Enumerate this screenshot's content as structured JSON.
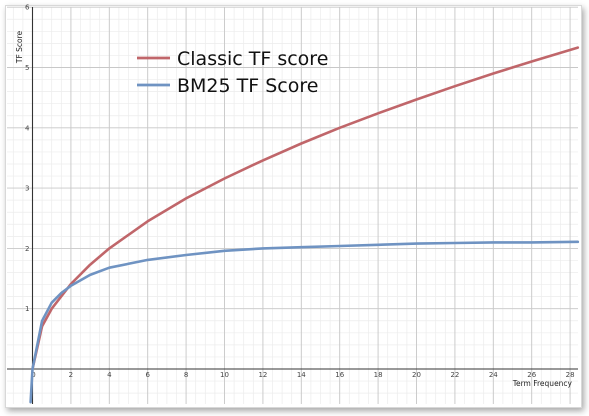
{
  "chart_data": {
    "type": "line",
    "xlabel": "Term Frequency",
    "ylabel": "TF Score",
    "xlim": [
      0,
      28.4
    ],
    "ylim": [
      -0.55,
      6
    ],
    "x_ticks": [
      0,
      2,
      4,
      6,
      8,
      10,
      12,
      14,
      16,
      18,
      20,
      22,
      24,
      26,
      28
    ],
    "y_ticks": [
      1,
      2,
      3,
      4,
      5,
      6
    ],
    "grid": true,
    "legend_position": "top-center",
    "series": [
      {
        "name": "Classic TF score",
        "color": "#c0666a",
        "x": [
          0,
          0.5,
          1,
          2,
          3,
          4,
          6,
          8,
          10,
          12,
          14,
          16,
          18,
          20,
          22,
          24,
          26,
          28.4
        ],
        "y": [
          0,
          0.71,
          1.0,
          1.41,
          1.73,
          2.0,
          2.45,
          2.83,
          3.16,
          3.46,
          3.74,
          4.0,
          4.24,
          4.47,
          4.69,
          4.9,
          5.1,
          5.33
        ]
      },
      {
        "name": "BM25 TF Score",
        "color": "#6f93c2",
        "x": [
          -0.1,
          0,
          0.5,
          1,
          1.5,
          2,
          3,
          4,
          6,
          8,
          10,
          12,
          14,
          16,
          18,
          20,
          22,
          24,
          26,
          28.4
        ],
        "y": [
          -0.55,
          0,
          0.8,
          1.1,
          1.26,
          1.38,
          1.56,
          1.68,
          1.81,
          1.89,
          1.96,
          2.0,
          2.02,
          2.04,
          2.06,
          2.08,
          2.09,
          2.1,
          2.1,
          2.11
        ]
      }
    ]
  }
}
